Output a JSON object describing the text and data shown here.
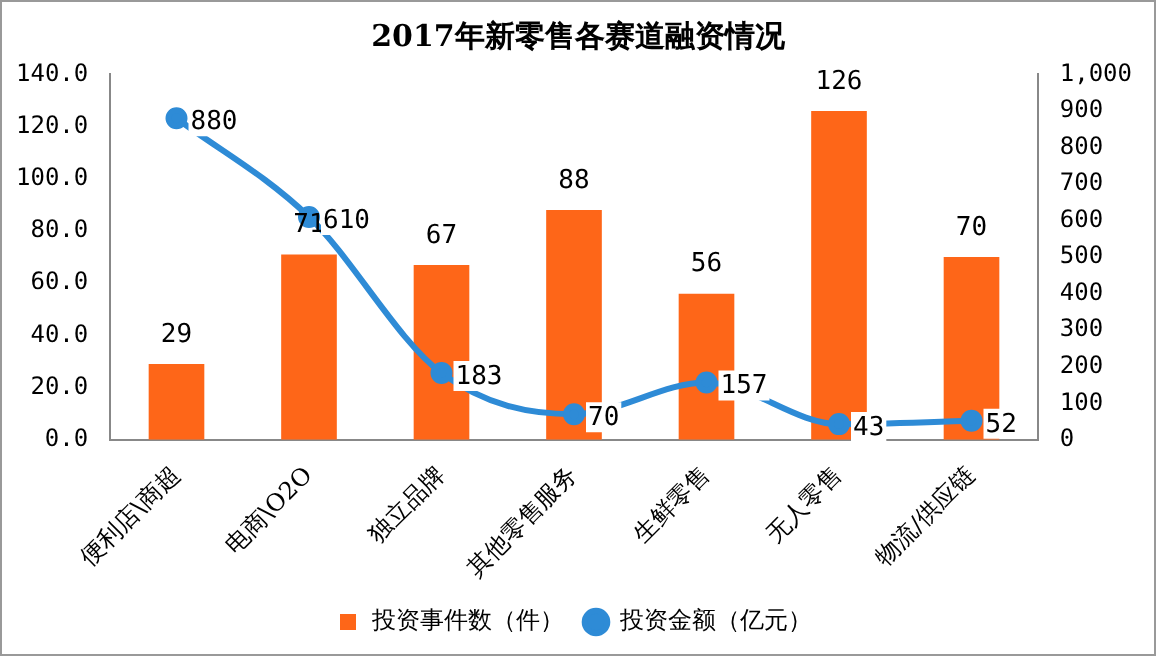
{
  "chart_data": {
    "type": "bar",
    "title": "2017年新零售各赛道融资情况",
    "categories": [
      "便利店\\商超",
      "电商\\O2O",
      "独立品牌",
      "其他零售服务",
      "生鲜零售",
      "无人零售",
      "物流/供应链"
    ],
    "series": [
      {
        "name": "投资事件数（件）",
        "color": "#fe6618",
        "values": [
          29,
          71,
          67,
          88,
          56,
          126,
          70
        ]
      },
      {
        "name": "投资金额（亿元）",
        "type": "line",
        "axis": "y2",
        "color": "#2e8bd6",
        "values": [
          880,
          610,
          183,
          70,
          157,
          43,
          52
        ]
      }
    ],
    "ylim": [
      0,
      140
    ],
    "yticks": [
      {
        "value": 0,
        "label": "0.0"
      },
      {
        "value": 20,
        "label": "20.0"
      },
      {
        "value": 40,
        "label": "40.0"
      },
      {
        "value": 60,
        "label": "60.0"
      },
      {
        "value": 80,
        "label": "80.0"
      },
      {
        "value": 100,
        "label": "100.0"
      },
      {
        "value": 120,
        "label": "120.0"
      },
      {
        "value": 140,
        "label": "140.0"
      }
    ],
    "y2lim": [
      0,
      1000
    ],
    "y2ticks": [
      0,
      100,
      200,
      300,
      400,
      500,
      600,
      700,
      800,
      900,
      {
        "value": 1000,
        "label": "1,000"
      }
    ],
    "data_labels": true,
    "legend": "bottom",
    "grid": false,
    "marker": "circle",
    "line_style": "solid"
  }
}
